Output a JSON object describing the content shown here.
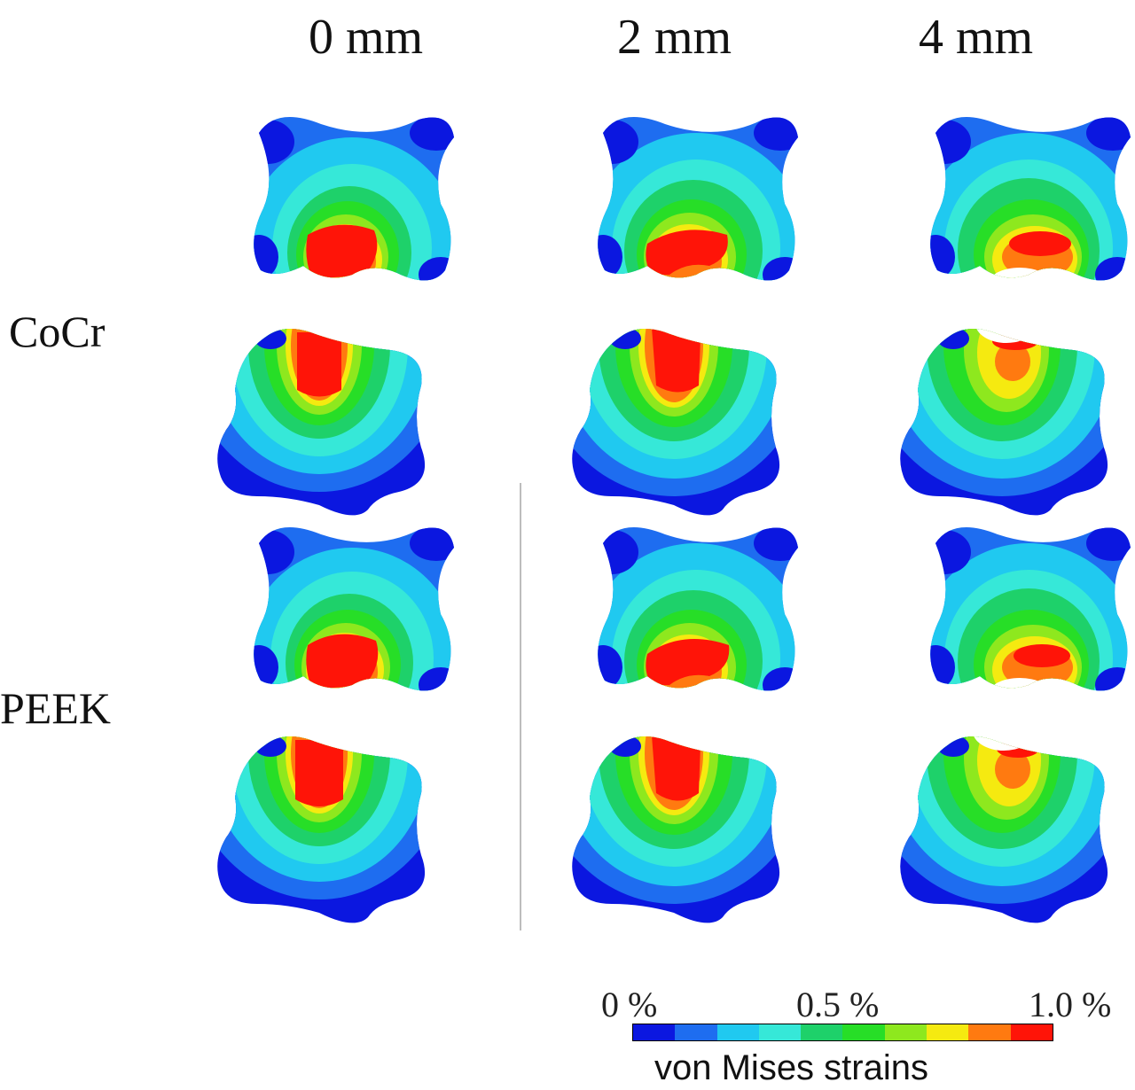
{
  "columns": [
    "0 mm",
    "2 mm",
    "4 mm"
  ],
  "rows": [
    "CoCr",
    "PEEK"
  ],
  "legend": {
    "ticks": [
      "0 %",
      "0.5 %",
      "1.0 %"
    ],
    "title": "von Mises strains",
    "colors": [
      "#0b17e0",
      "#1e6df0",
      "#20c9f0",
      "#36e8d8",
      "#1ed16a",
      "#27de27",
      "#8ee81e",
      "#f5ea10",
      "#ff7a10",
      "#ff1408"
    ]
  }
}
